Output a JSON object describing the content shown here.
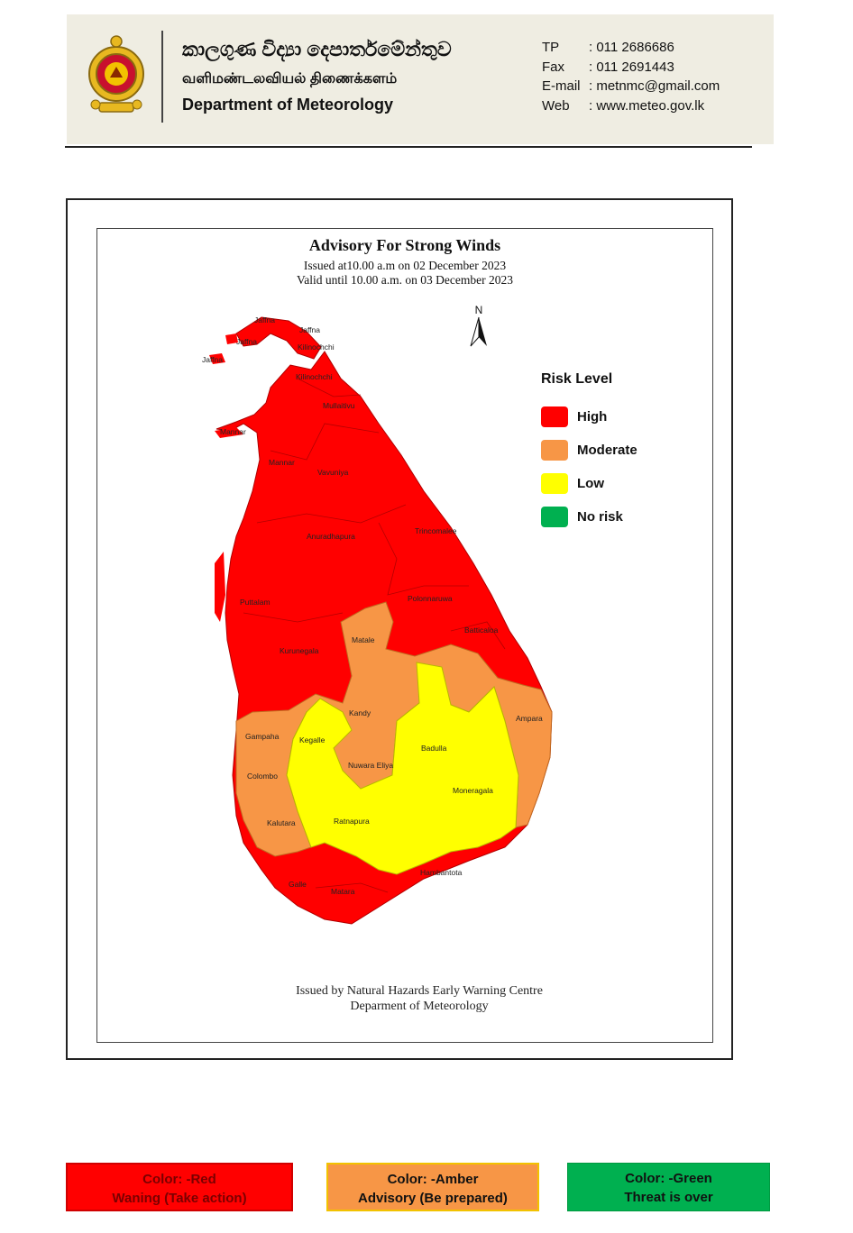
{
  "letterhead": {
    "dept_sinhala": "කාලගුණ විද්‍යා දෙපාර්තමේන්තුව",
    "dept_tamil": "வளிமண்டலவியல் திணைக்களம்",
    "dept_english": "Department of Meteorology",
    "contacts": [
      {
        "key": "TP",
        "value": ": 011 2686686"
      },
      {
        "key": "Fax",
        "value": ": 011 2691443"
      },
      {
        "key": "E-mail",
        "value": ": metnmc@gmail.com"
      },
      {
        "key": "Web",
        "value": ": www.meteo.gov.lk"
      }
    ]
  },
  "map": {
    "title": "Advisory For Strong Winds",
    "issued": "Issued at10.00 a.m on 02 December 2023",
    "valid": "Valid until 10.00 a.m. on 03 December 2023",
    "north_label": "N",
    "legend": {
      "title": "Risk Level",
      "items": [
        {
          "label": "High",
          "color": "#ff0000"
        },
        {
          "label": "Moderate",
          "color": "#f79646"
        },
        {
          "label": "Low",
          "color": "#ffff00"
        },
        {
          "label": "No risk",
          "color": "#00b050"
        }
      ]
    },
    "districts": [
      {
        "name": "Jaffna",
        "risk": "High"
      },
      {
        "name": "Jaffna",
        "risk": "High"
      },
      {
        "name": "Jaffna",
        "risk": "High"
      },
      {
        "name": "Jaffna",
        "risk": "High"
      },
      {
        "name": "Kilinochchi",
        "risk": "High"
      },
      {
        "name": "Kilinochchi",
        "risk": "High"
      },
      {
        "name": "Mullaitivu",
        "risk": "High"
      },
      {
        "name": "Mannar",
        "risk": "High"
      },
      {
        "name": "Mannar",
        "risk": "High"
      },
      {
        "name": "Vavuniya",
        "risk": "High"
      },
      {
        "name": "Anuradhapura",
        "risk": "High"
      },
      {
        "name": "Trincomalee",
        "risk": "High"
      },
      {
        "name": "Puttalam",
        "risk": "High"
      },
      {
        "name": "Polonnaruwa",
        "risk": "High"
      },
      {
        "name": "Batticaloa",
        "risk": "High"
      },
      {
        "name": "Kurunegala",
        "risk": "High"
      },
      {
        "name": "Matale",
        "risk": "Moderate"
      },
      {
        "name": "Kandy",
        "risk": "Moderate"
      },
      {
        "name": "Ampara",
        "risk": "Moderate"
      },
      {
        "name": "Gampaha",
        "risk": "Moderate"
      },
      {
        "name": "Kegalle",
        "risk": "Low"
      },
      {
        "name": "Badulla",
        "risk": "Low"
      },
      {
        "name": "Nuwara Eliya",
        "risk": "Moderate"
      },
      {
        "name": "Colombo",
        "risk": "Moderate"
      },
      {
        "name": "Moneragala",
        "risk": "Low"
      },
      {
        "name": "Kalutara",
        "risk": "Moderate"
      },
      {
        "name": "Ratnapura",
        "risk": "Low"
      },
      {
        "name": "Hambantota",
        "risk": "High"
      },
      {
        "name": "Galle",
        "risk": "High"
      },
      {
        "name": "Matara",
        "risk": "High"
      }
    ],
    "footer_line1": "Issued by Natural Hazards Early Warning Centre",
    "footer_line2": "Deparment of Meteorology"
  },
  "color_key": [
    {
      "line1": "Color: -Red",
      "line2": "Waning (Take action)",
      "color": "#ff0000"
    },
    {
      "line1": "Color: -Amber",
      "line2": "Advisory (Be prepared)",
      "color": "#f79646"
    },
    {
      "line1": "Color: -Green",
      "line2": "Threat is over",
      "color": "#00b050"
    }
  ]
}
